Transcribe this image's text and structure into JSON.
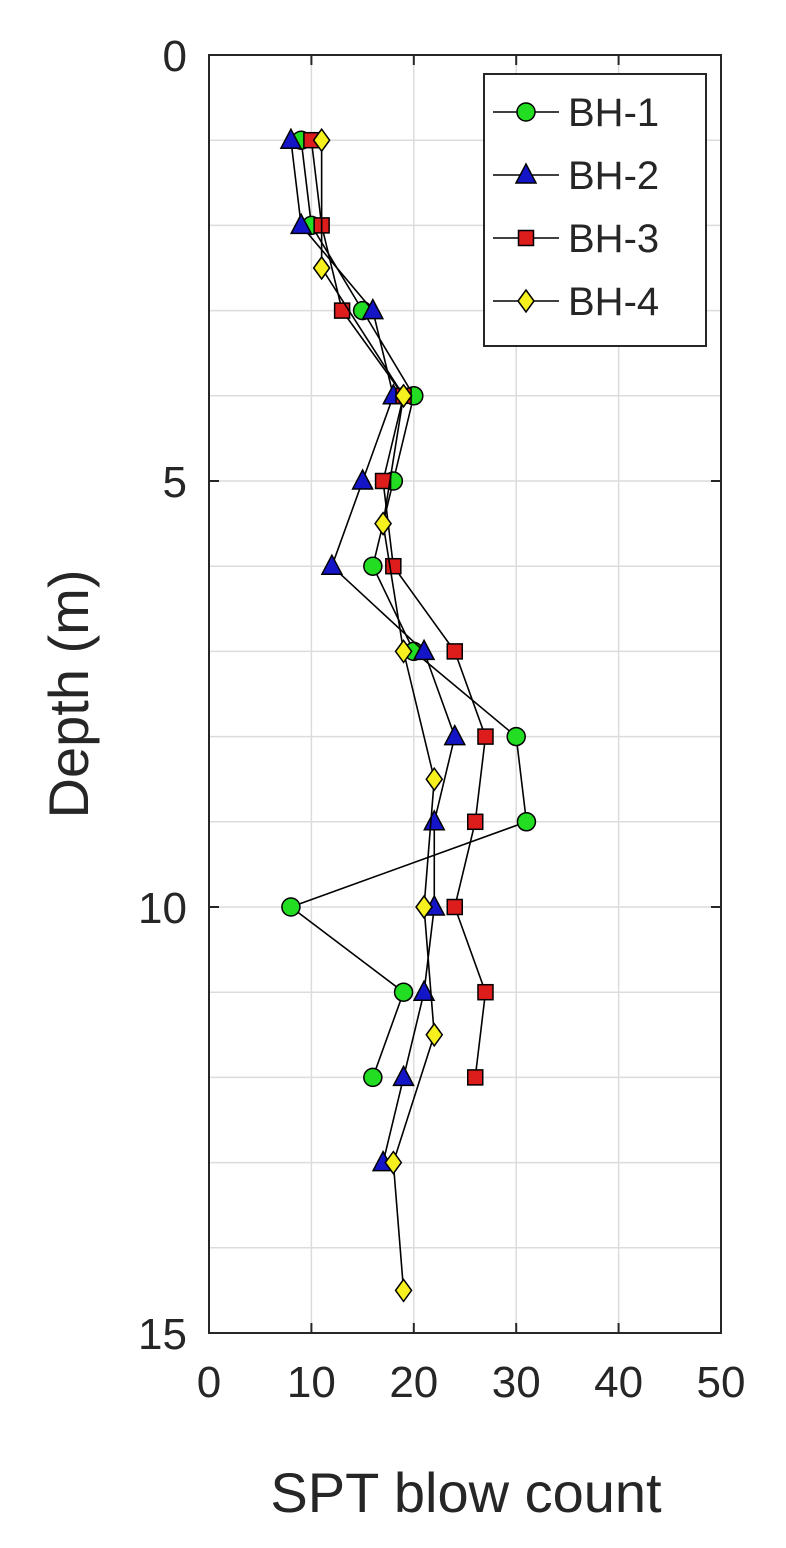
{
  "chart_data": {
    "type": "line",
    "orientation": "depth-profile",
    "xlabel": "SPT blow count",
    "ylabel": "Depth (m)",
    "xlim": [
      0,
      50
    ],
    "ylim": [
      0,
      15
    ],
    "y_reversed": true,
    "x_ticks": [
      "0",
      "10",
      "20",
      "30",
      "40",
      "50"
    ],
    "y_ticks": [
      "0",
      "5",
      "10",
      "15"
    ],
    "grid": true,
    "legend_position": "top-right",
    "series": [
      {
        "name": "BH-1",
        "marker": "circle",
        "color": "#22dd22",
        "points": [
          {
            "depth": 1.0,
            "n": 9
          },
          {
            "depth": 2.0,
            "n": 10
          },
          {
            "depth": 3.0,
            "n": 15
          },
          {
            "depth": 4.0,
            "n": 20
          },
          {
            "depth": 5.0,
            "n": 18
          },
          {
            "depth": 6.0,
            "n": 16
          },
          {
            "depth": 7.0,
            "n": 20
          },
          {
            "depth": 8.0,
            "n": 30
          },
          {
            "depth": 9.0,
            "n": 31
          },
          {
            "depth": 10.0,
            "n": 8
          },
          {
            "depth": 11.0,
            "n": 19
          },
          {
            "depth": 12.0,
            "n": 16
          }
        ]
      },
      {
        "name": "BH-2",
        "marker": "triangle",
        "color": "#1515c8",
        "points": [
          {
            "depth": 1.0,
            "n": 8
          },
          {
            "depth": 2.0,
            "n": 9
          },
          {
            "depth": 3.0,
            "n": 16
          },
          {
            "depth": 4.0,
            "n": 18
          },
          {
            "depth": 5.0,
            "n": 15
          },
          {
            "depth": 6.0,
            "n": 12
          },
          {
            "depth": 7.0,
            "n": 21
          },
          {
            "depth": 8.0,
            "n": 24
          },
          {
            "depth": 9.0,
            "n": 22
          },
          {
            "depth": 10.0,
            "n": 22
          },
          {
            "depth": 11.0,
            "n": 21
          },
          {
            "depth": 12.0,
            "n": 19
          },
          {
            "depth": 13.0,
            "n": 17
          }
        ]
      },
      {
        "name": "BH-3",
        "marker": "square",
        "color": "#dd1c1c",
        "points": [
          {
            "depth": 1.0,
            "n": 10
          },
          {
            "depth": 2.0,
            "n": 11
          },
          {
            "depth": 3.0,
            "n": 13
          },
          {
            "depth": 4.0,
            "n": 19
          },
          {
            "depth": 5.0,
            "n": 17
          },
          {
            "depth": 6.0,
            "n": 18
          },
          {
            "depth": 7.0,
            "n": 24
          },
          {
            "depth": 8.0,
            "n": 27
          },
          {
            "depth": 9.0,
            "n": 26
          },
          {
            "depth": 10.0,
            "n": 24
          },
          {
            "depth": 11.0,
            "n": 27
          },
          {
            "depth": 12.0,
            "n": 26
          }
        ]
      },
      {
        "name": "BH-4",
        "marker": "diamond",
        "color": "#f5f01e",
        "points": [
          {
            "depth": 1.0,
            "n": 11
          },
          {
            "depth": 2.5,
            "n": 11
          },
          {
            "depth": 4.0,
            "n": 19
          },
          {
            "depth": 5.5,
            "n": 17
          },
          {
            "depth": 7.0,
            "n": 19
          },
          {
            "depth": 8.5,
            "n": 22
          },
          {
            "depth": 10.0,
            "n": 21
          },
          {
            "depth": 11.5,
            "n": 22
          },
          {
            "depth": 13.0,
            "n": 18
          },
          {
            "depth": 14.5,
            "n": 19
          }
        ]
      }
    ]
  }
}
